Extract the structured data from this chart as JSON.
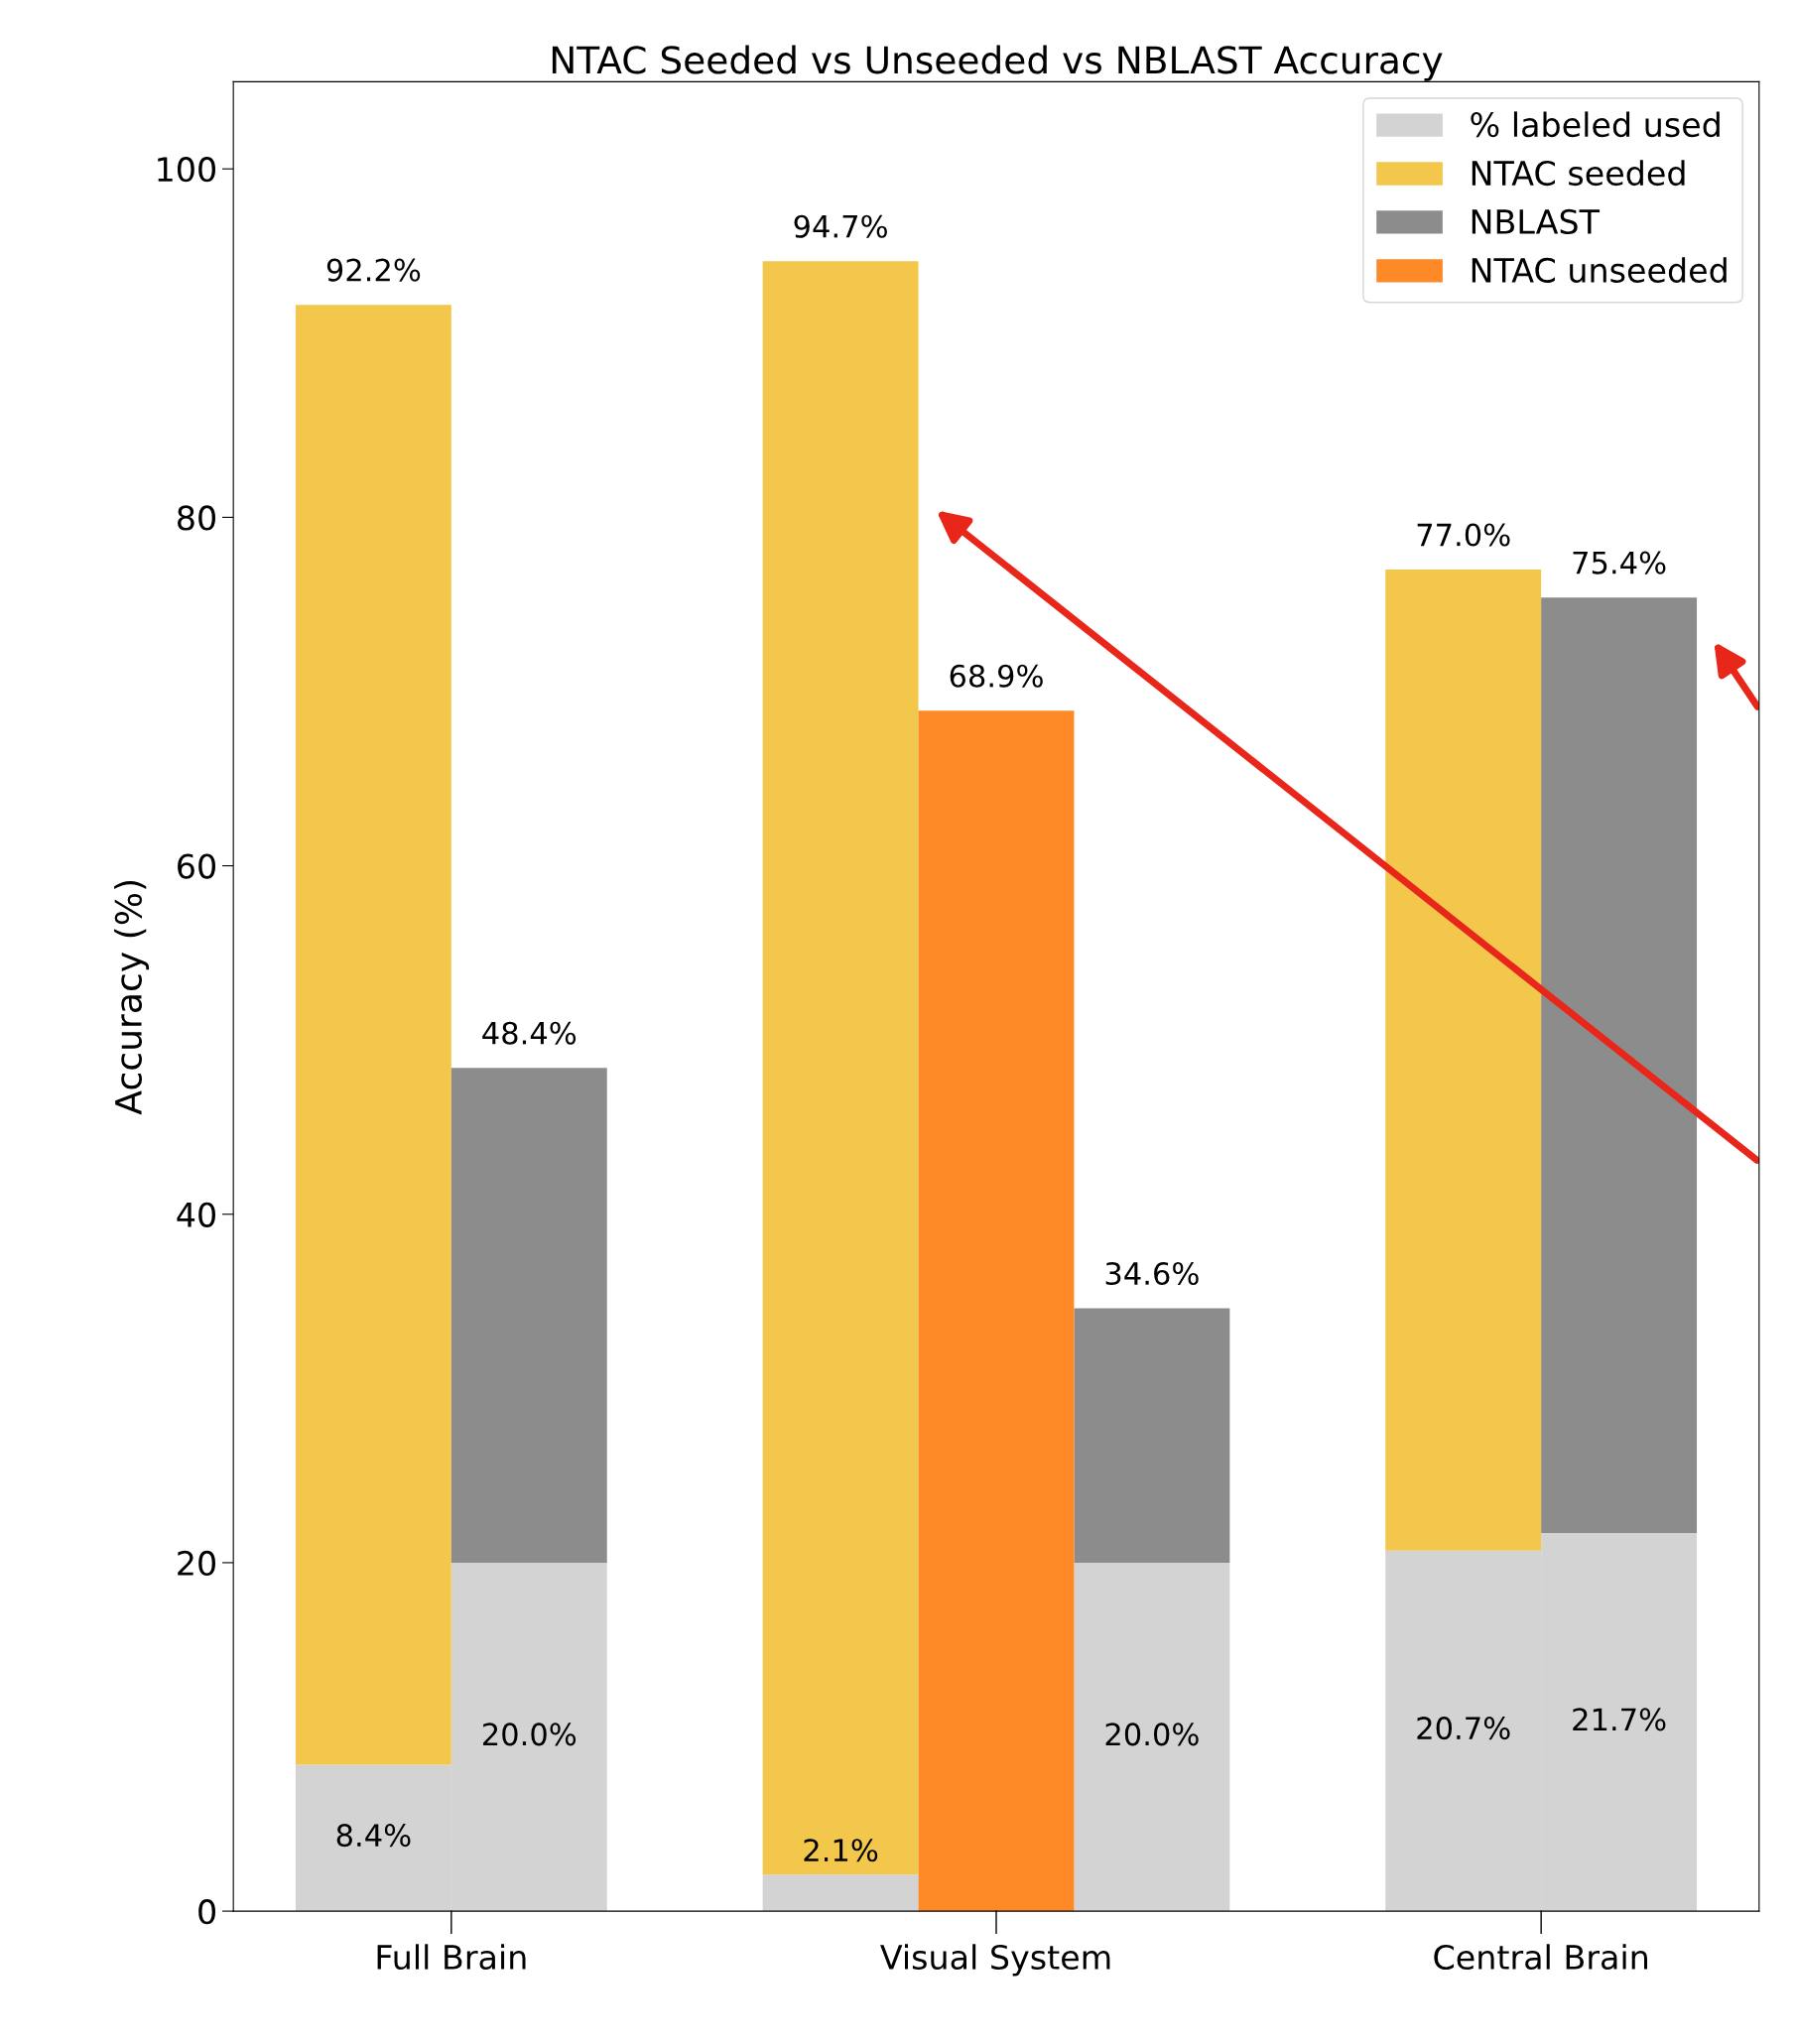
{
  "chart_data": {
    "type": "bar",
    "title": "NTAC Seeded vs Unseeded vs NBLAST Accuracy",
    "ylabel": "Accuracy (%)",
    "categories": [
      null,
      null,
      null,
      null,
      null,
      null,
      null,
      null,
      null
    ],
    "stacked": true,
    "annotations": [
      "Full Brain",
      "Visual System",
      "Central Brain"
    ],
    "ylim": [
      0,
      105
    ],
    "yticks": [
      0,
      20,
      40,
      60,
      80,
      100
    ],
    "grid": false,
    "legend": "top right",
    "totals": [
      "92.2%",
      "48.4%",
      null,
      "94.7%",
      "68.9%",
      "34.6%",
      null,
      "77.0%",
      "75.4%"
    ],
    "series": [
      {
        "name": "% labeled used",
        "color": "#d3d3d3",
        "values": [
          8.4,
          20.0,
          null,
          2.1,
          null,
          20.0,
          null,
          20.7,
          21.7
        ],
        "value_labels": [
          "8.4%",
          "20.0%",
          null,
          "2.1%",
          null,
          "20.0%",
          null,
          "20.7%",
          "21.7%"
        ]
      },
      {
        "name": "NTAC seeded",
        "color": "#f2c74c",
        "values": [
          83.8,
          null,
          null,
          92.6,
          null,
          null,
          null,
          56.3,
          null
        ]
      },
      {
        "name": "NBLAST",
        "color": "#8c8c8c",
        "values": [
          null,
          28.4,
          null,
          null,
          null,
          14.6,
          null,
          null,
          53.7
        ]
      },
      {
        "name": "NTAC unseeded",
        "color": "#fd8a26",
        "values": [
          null,
          null,
          null,
          null,
          68.9,
          null,
          null,
          null,
          null
        ]
      }
    ]
  }
}
